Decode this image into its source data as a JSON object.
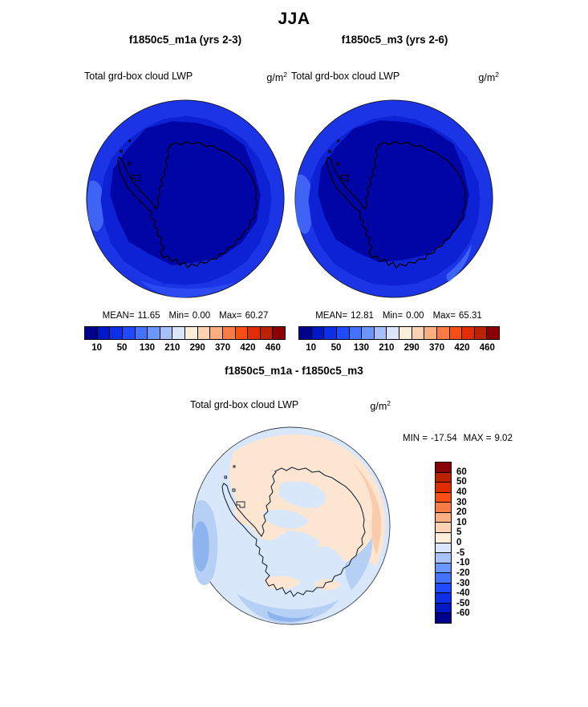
{
  "title": "JJA",
  "panels": {
    "left": {
      "title": "f1850c5_m1a (yrs 2-3)",
      "variable": "Total grd-box cloud LWP",
      "units_base": "g/m",
      "units_exp": "2",
      "stats": {
        "mean_label": "MEAN=",
        "mean": "11.65",
        "min_label": "Min=",
        "min": "0.00",
        "max_label": "Max=",
        "max": "60.27"
      },
      "ticks": [
        "10",
        "50",
        "130",
        "210",
        "290",
        "370",
        "420",
        "460"
      ]
    },
    "right": {
      "title": "f1850c5_m3 (yrs 2-6)",
      "variable": "Total grd-box cloud LWP",
      "units_base": "g/m",
      "units_exp": "2",
      "stats": {
        "mean_label": "MEAN=",
        "mean": "12.81",
        "min_label": "Min=",
        "min": "0.00",
        "max_label": "Max=",
        "max": "65.31"
      },
      "ticks": [
        "10",
        "50",
        "130",
        "210",
        "290",
        "370",
        "420",
        "460"
      ]
    },
    "diff": {
      "title": "f1850c5_m1a - f1850c5_m3",
      "variable": "Total grd-box cloud LWP",
      "units_base": "g/m",
      "units_exp": "2",
      "minmax": {
        "min_label": "MIN =",
        "min": "-17.54",
        "max_label": "MAX =",
        "max": "9.02"
      },
      "labels": [
        "60",
        "50",
        "40",
        "30",
        "20",
        "10",
        "5",
        "0",
        "-5",
        "-10",
        "-20",
        "-30",
        "-40",
        "-50",
        "-60"
      ]
    }
  },
  "colors": {
    "diverging_palette": [
      "#00008f",
      "#0019c8",
      "#0d2fe8",
      "#1f4aff",
      "#4272ff",
      "#6b95ff",
      "#a6c1fb",
      "#d9e6fb",
      "#fdeeda",
      "#fcd2b2",
      "#fbae7e",
      "#fa7c44",
      "#f84e16",
      "#e12c00",
      "#bc2200",
      "#8b0000"
    ],
    "map": {
      "ocean_bright": "#1b35e6",
      "ocean_mid": "#0c22d4",
      "ocean_dark": "#0105a6",
      "ocean_light": "#3f63f4",
      "ocean_band": "#2b4aef",
      "coastline": "#000000",
      "rim": "#15151d",
      "diff_base": "#d9e7fa",
      "diff_peach": "#fce6d1",
      "diff_peach_deep": "#f9cdab",
      "diff_blue_light": "#b5d0f4",
      "diff_blue_mid": "#8db4ee",
      "diff_coastline": "#1b2836",
      "diff_rim": "#3a424c"
    }
  },
  "chart_data": [
    {
      "type": "heatmap",
      "title": "f1850c5_m1a (yrs 2-3)",
      "season": "JJA",
      "variable": "Total grd-box cloud LWP",
      "units": "g/m2",
      "projection": "south polar stereographic (Antarctica)",
      "stats": {
        "mean": 11.65,
        "min": 0.0,
        "max": 60.27
      },
      "levels_labeled": [
        10,
        50,
        130,
        210,
        290,
        370,
        420,
        460
      ],
      "palette": "16-step blue-to-red diverging",
      "legend_position": "below",
      "field_summary": "lowest values (darkest blue) over Antarctic interior, higher bright-blue ring over surrounding Southern Ocean"
    },
    {
      "type": "heatmap",
      "title": "f1850c5_m3 (yrs 2-6)",
      "season": "JJA",
      "variable": "Total grd-box cloud LWP",
      "units": "g/m2",
      "projection": "south polar stereographic (Antarctica)",
      "stats": {
        "mean": 12.81,
        "min": 0.0,
        "max": 65.31
      },
      "levels_labeled": [
        10,
        50,
        130,
        210,
        290,
        370,
        420,
        460
      ],
      "palette": "16-step blue-to-red diverging",
      "legend_position": "below",
      "field_summary": "lowest values (darkest blue) over Antarctic interior, higher bright-blue ring over surrounding Southern Ocean"
    },
    {
      "type": "heatmap",
      "title": "f1850c5_m1a - f1850c5_m3",
      "season": "JJA",
      "variable": "Total grd-box cloud LWP",
      "units": "g/m2",
      "projection": "south polar stereographic (Antarctica)",
      "stats": {
        "min": -17.54,
        "max": 9.02
      },
      "levels_labeled": [
        60,
        50,
        40,
        30,
        20,
        10,
        5,
        0,
        -5,
        -10,
        -20,
        -30,
        -40,
        -50,
        -60
      ],
      "palette": "16-step blue-to-red diverging",
      "legend_position": "right",
      "field_summary": "mostly weak positive (pale peach) differences over/near continent, negative (blue) bands along western and southern ocean edges"
    }
  ]
}
